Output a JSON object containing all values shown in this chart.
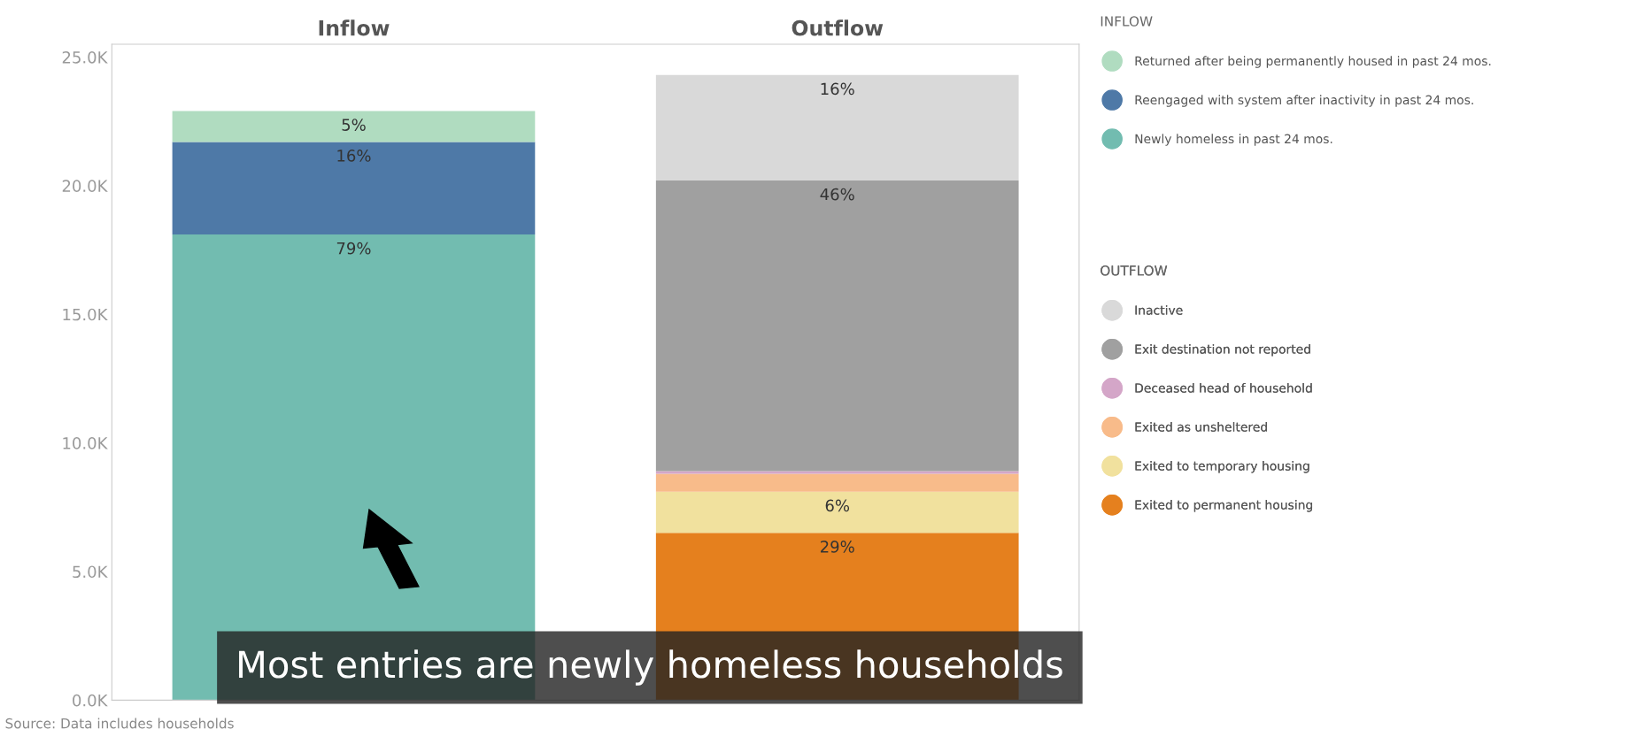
{
  "chart_data": {
    "type": "bar",
    "stacked": true,
    "categories": [
      "Inflow",
      "Outflow"
    ],
    "series": [
      {
        "name": "Newly homeless in past 24 mos.",
        "color": "#72bcb0",
        "values": [
          18100,
          null
        ]
      },
      {
        "name": "Reengaged with system after inactivity in past 24 mos.",
        "color": "#4e79a7",
        "values": [
          3600,
          null
        ]
      },
      {
        "name": "Returned after being permanently housed in past 24 mos.",
        "color": "#b0dcc0",
        "values": [
          1200,
          null
        ]
      },
      {
        "name": "Exited to permanent housing",
        "color": "#e5801e",
        "values": [
          null,
          6500
        ]
      },
      {
        "name": "Exited to temporary housing",
        "color": "#f1e19e",
        "values": [
          null,
          1600
        ]
      },
      {
        "name": "Exited as unsheltered",
        "color": "#f8bb8a",
        "values": [
          null,
          700
        ]
      },
      {
        "name": "Deceased head of household",
        "color": "#d4a6c8",
        "values": [
          null,
          100
        ]
      },
      {
        "name": "Exit destination not reported",
        "color": "#a0a0a0",
        "values": [
          null,
          11300
        ]
      },
      {
        "name": "Inactive",
        "color": "#d9d9d9",
        "values": [
          null,
          4100
        ]
      }
    ],
    "ylim": [
      0,
      25500
    ],
    "yticks": [
      {
        "value": 0,
        "label": "0.0K"
      },
      {
        "value": 5000,
        "label": "5.0K"
      },
      {
        "value": 10000,
        "label": "10.0K"
      },
      {
        "value": 15000,
        "label": "15.0K"
      },
      {
        "value": 20000,
        "label": "20.0K"
      },
      {
        "value": 25000,
        "label": "25.0K"
      }
    ],
    "grid": false,
    "legend": "right",
    "annotations": [
      "INFLOW",
      "OUTFLOW",
      "Source: Data includes households",
      "Most entries are newly homeless households",
      {
        "text": "79%",
        "x": "Inflow",
        "y": 18100
      },
      {
        "text": "16%",
        "x": "Inflow",
        "y": 21700
      },
      {
        "text": "5%",
        "x": "Inflow",
        "y": 22900
      },
      {
        "text": "29%",
        "x": "Outflow",
        "y": 6500
      },
      {
        "text": "6%",
        "x": "Outflow",
        "y": 8100
      },
      {
        "text": "46%",
        "x": "Outflow",
        "y": 20200
      },
      {
        "text": "16%",
        "x": "Outflow",
        "y": 24300
      }
    ]
  }
}
